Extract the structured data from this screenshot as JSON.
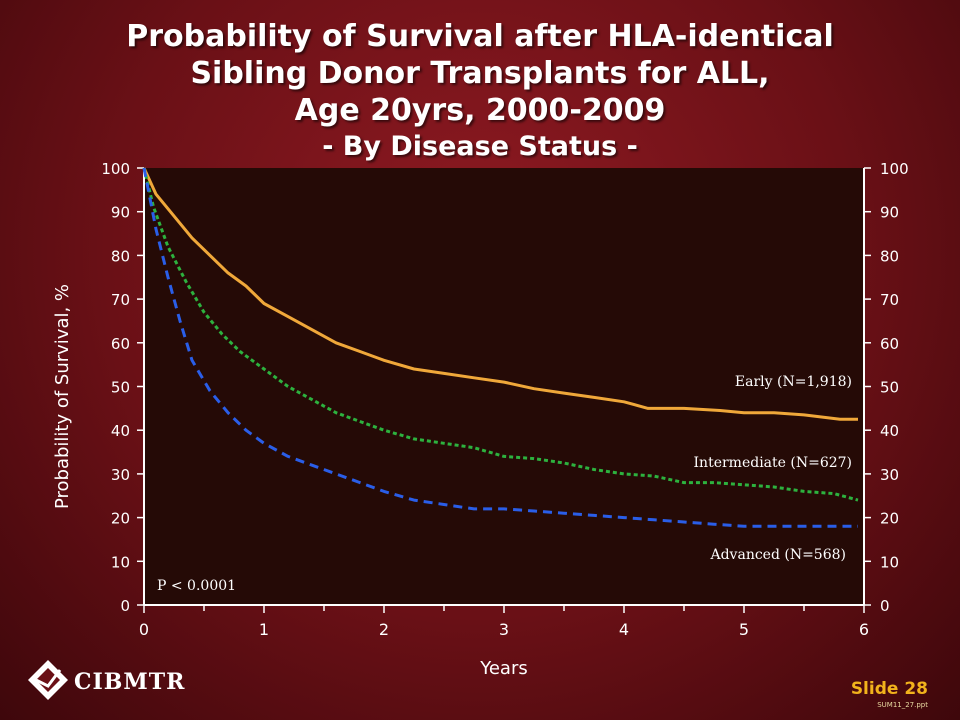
{
  "title_lines": [
    "Probability of Survival after HLA-identical",
    "Sibling Donor Transplants for ALL,",
    "Age  20yrs, 2000-2009"
  ],
  "subtitle": "- By Disease Status -",
  "footer": {
    "logo_text": "CIBMTR",
    "slide_label": "Slide 28",
    "slide_code": "SUM11_27.ppt"
  },
  "colors": {
    "plot_background": "#250a06",
    "early": "#f0a83a",
    "intermediate": "#2db23e",
    "advanced": "#2a5ee8",
    "slide_label": "#f2b31c"
  },
  "chart_data": {
    "type": "line",
    "xlabel": "Years",
    "ylabel": "Probability of Survival, %",
    "xlim": [
      0,
      6
    ],
    "ylim": [
      0,
      100
    ],
    "xticks": [
      0,
      1,
      2,
      3,
      4,
      5,
      6
    ],
    "yticks": [
      0,
      10,
      20,
      30,
      40,
      50,
      60,
      70,
      80,
      90,
      100
    ],
    "annotation": "P < 0.0001",
    "grid": false,
    "legend": "inline labels near line ends",
    "series": [
      {
        "name": "Early (N=1,918)",
        "style": "solid",
        "x": [
          0,
          0.1,
          0.25,
          0.4,
          0.55,
          0.7,
          0.85,
          1.0,
          1.2,
          1.4,
          1.6,
          1.8,
          2.0,
          2.25,
          2.5,
          2.75,
          3.0,
          3.25,
          3.5,
          3.75,
          4.0,
          4.2,
          4.5,
          4.8,
          5.0,
          5.25,
          5.5,
          5.8,
          5.95
        ],
        "y": [
          100,
          94,
          89,
          84,
          80,
          76,
          73,
          69,
          66,
          63,
          60,
          58,
          56,
          54,
          53,
          52,
          51,
          49.5,
          48.5,
          47.5,
          46.5,
          45,
          45,
          44.5,
          44,
          44,
          43.5,
          42.5,
          42.5
        ]
      },
      {
        "name": "Intermediate (N=627)",
        "style": "dotted",
        "x": [
          0,
          0.08,
          0.2,
          0.35,
          0.5,
          0.65,
          0.8,
          1.0,
          1.2,
          1.4,
          1.6,
          1.8,
          2.0,
          2.25,
          2.5,
          2.75,
          3.0,
          3.25,
          3.5,
          3.75,
          4.0,
          4.25,
          4.5,
          4.75,
          5.0,
          5.25,
          5.5,
          5.75,
          5.95
        ],
        "y": [
          100,
          91,
          82,
          74,
          67,
          62,
          58,
          54,
          50,
          47,
          44,
          42,
          40,
          38,
          37,
          36,
          34,
          33.5,
          32.5,
          31,
          30,
          29.5,
          28,
          28,
          27.5,
          27,
          26,
          25.5,
          24
        ]
      },
      {
        "name": "Advanced (N=568)",
        "style": "dashed",
        "x": [
          0,
          0.1,
          0.2,
          0.3,
          0.4,
          0.55,
          0.7,
          0.85,
          1.0,
          1.2,
          1.4,
          1.6,
          1.8,
          2.0,
          2.25,
          2.5,
          2.75,
          3.0,
          3.25,
          3.5,
          3.75,
          4.0,
          4.25,
          4.5,
          4.75,
          5.0,
          5.5,
          5.95
        ],
        "y": [
          100,
          86,
          75,
          65,
          56,
          49,
          44,
          40,
          37,
          34,
          32,
          30,
          28,
          26,
          24,
          23,
          22,
          22,
          21.5,
          21,
          20.5,
          20,
          19.5,
          19,
          18.5,
          18,
          18,
          18
        ]
      }
    ],
    "series_labels": [
      "Early (N=1,918)",
      "Intermediate (N=627)",
      "Advanced (N=568)"
    ]
  }
}
